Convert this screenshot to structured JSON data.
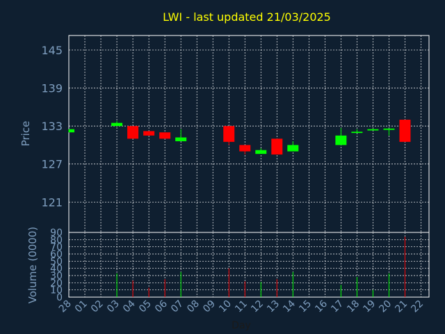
{
  "chart_data": [
    {
      "type": "candlestick",
      "title": "LWI - last updated 21/03/2025",
      "ylabel": "Price",
      "yticks": [
        121,
        127,
        133,
        139,
        145
      ],
      "ylim": [
        116.2,
        147.3
      ],
      "grid": true,
      "categories": [
        "28",
        "01",
        "02",
        "03",
        "04",
        "05",
        "06",
        "07",
        "08",
        "09",
        "10",
        "11",
        "12",
        "13",
        "14",
        "15",
        "16",
        "17",
        "18",
        "19",
        "20",
        "21",
        "22"
      ],
      "candles": [
        {
          "day": "28",
          "open": 132.0,
          "high": 132.5,
          "low": 132.0,
          "close": 132.5
        },
        {
          "day": "03",
          "open": 133.0,
          "high": 133.8,
          "low": 133.0,
          "close": 133.5
        },
        {
          "day": "04",
          "open": 133.0,
          "high": 133.0,
          "low": 131.0,
          "close": 131.0
        },
        {
          "day": "05",
          "open": 132.2,
          "high": 132.2,
          "low": 131.5,
          "close": 131.5
        },
        {
          "day": "06",
          "open": 132.0,
          "high": 132.0,
          "low": 131.0,
          "close": 131.0
        },
        {
          "day": "07",
          "open": 130.6,
          "high": 132.5,
          "low": 130.6,
          "close": 131.2
        },
        {
          "day": "10",
          "open": 133.0,
          "high": 133.0,
          "low": 130.0,
          "close": 130.5
        },
        {
          "day": "11",
          "open": 130.0,
          "high": 130.0,
          "low": 128.5,
          "close": 129.0
        },
        {
          "day": "12",
          "open": 128.6,
          "high": 129.5,
          "low": 128.6,
          "close": 129.2
        },
        {
          "day": "13",
          "open": 131.0,
          "high": 131.0,
          "low": 128.5,
          "close": 128.5
        },
        {
          "day": "14",
          "open": 129.0,
          "high": 130.6,
          "low": 129.0,
          "close": 130.0
        },
        {
          "day": "17",
          "open": 130.0,
          "high": 132.7,
          "low": 130.0,
          "close": 131.5
        },
        {
          "day": "18",
          "open": 131.9,
          "high": 132.5,
          "low": 131.9,
          "close": 132.1
        },
        {
          "day": "19",
          "open": 132.3,
          "high": 132.6,
          "low": 132.3,
          "close": 132.5
        },
        {
          "day": "20",
          "open": 132.4,
          "high": 132.6,
          "low": 131.5,
          "close": 132.6
        },
        {
          "day": "21",
          "open": 134.0,
          "high": 134.0,
          "low": 130.5,
          "close": 130.5
        }
      ],
      "colors": {
        "up": "#00ff00",
        "down": "#ff0000"
      }
    },
    {
      "type": "bar",
      "ylabel": "Volume (0000)",
      "xlabel": "Day",
      "yticks": [
        0,
        10,
        20,
        30,
        40,
        50,
        60,
        70,
        80,
        90
      ],
      "ylim": [
        0,
        90
      ],
      "grid": true,
      "categories": [
        "28",
        "01",
        "02",
        "03",
        "04",
        "05",
        "06",
        "07",
        "08",
        "09",
        "10",
        "11",
        "12",
        "13",
        "14",
        "15",
        "16",
        "17",
        "18",
        "19",
        "20",
        "21",
        "22"
      ],
      "bars": [
        {
          "day": "03",
          "value": 33,
          "dir": "up"
        },
        {
          "day": "04",
          "value": 23,
          "dir": "down"
        },
        {
          "day": "05",
          "value": 13,
          "dir": "down"
        },
        {
          "day": "06",
          "value": 25,
          "dir": "down"
        },
        {
          "day": "07",
          "value": 35,
          "dir": "up"
        },
        {
          "day": "10",
          "value": 40,
          "dir": "down"
        },
        {
          "day": "11",
          "value": 22,
          "dir": "down"
        },
        {
          "day": "12",
          "value": 21,
          "dir": "up"
        },
        {
          "day": "13",
          "value": 25,
          "dir": "down"
        },
        {
          "day": "14",
          "value": 35,
          "dir": "up"
        },
        {
          "day": "17",
          "value": 17,
          "dir": "up"
        },
        {
          "day": "18",
          "value": 28,
          "dir": "up"
        },
        {
          "day": "19",
          "value": 10,
          "dir": "up"
        },
        {
          "day": "20",
          "value": 33,
          "dir": "up"
        },
        {
          "day": "21",
          "value": 84,
          "dir": "down"
        }
      ],
      "colors": {
        "up": "#00ff00",
        "down": "#ff0000"
      }
    }
  ]
}
